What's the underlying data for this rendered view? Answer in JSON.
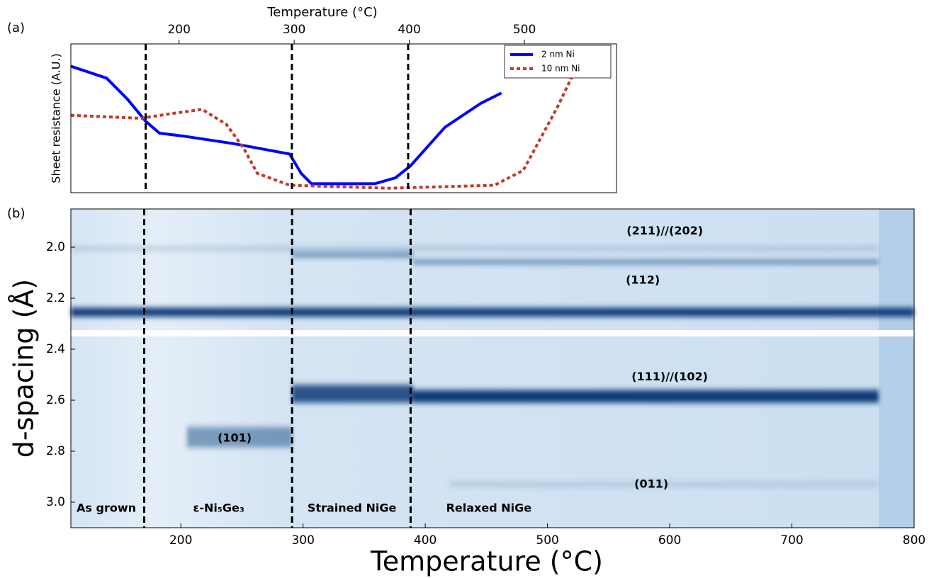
{
  "chart_data": [
    {
      "type": "line",
      "panel_label": "(a)",
      "xlabel": "Temperature (°C)",
      "ylabel": "Sheet resistance (A.U.)",
      "xlim": [
        106,
        580
      ],
      "xticks": [
        200,
        300,
        400,
        500
      ],
      "ylim": [
        0,
        1
      ],
      "legend": "upper right",
      "vlines": [
        171,
        298,
        399
      ],
      "series": [
        {
          "name": "2 nm Ni",
          "color": "#0000ff",
          "style": "solid",
          "x": [
            106,
            137,
            155,
            171,
            183,
            204,
            247,
            296,
            306,
            315,
            370,
            388,
            401,
            431,
            462,
            480
          ],
          "values": [
            0.85,
            0.77,
            0.63,
            0.48,
            0.4,
            0.38,
            0.33,
            0.26,
            0.13,
            0.06,
            0.06,
            0.1,
            0.18,
            0.44,
            0.6,
            0.67
          ]
        },
        {
          "name": "10 nm Ni",
          "color": "#c0392b",
          "style": "dotted",
          "x": [
            106,
            167,
            192,
            220,
            241,
            256,
            268,
            296,
            382,
            474,
            499,
            529,
            545
          ],
          "values": [
            0.52,
            0.5,
            0.53,
            0.56,
            0.46,
            0.3,
            0.13,
            0.05,
            0.03,
            0.05,
            0.15,
            0.58,
            0.84
          ]
        }
      ]
    },
    {
      "type": "heatmap",
      "panel_label": "(b)",
      "xlabel": "Temperature (°C)",
      "ylabel": "d-spacing (Å)",
      "xlim": [
        110,
        800
      ],
      "xticks": [
        200,
        300,
        400,
        500,
        600,
        700,
        800
      ],
      "ylim": [
        1.85,
        3.1
      ],
      "y_inverted": true,
      "yticks": [
        {
          "value": 2,
          "label": "2.0"
        },
        2.2,
        2.4,
        2.6,
        2.8,
        {
          "value": 3,
          "label": "3.0"
        }
      ],
      "gap": [
        2.325,
        2.35
      ],
      "vlines": [
        170,
        291,
        388
      ],
      "bands": [
        {
          "d": 2.005,
          "x": [
            110,
            771
          ],
          "width": 0.012,
          "intensity": 0.25
        },
        {
          "d": 2.03,
          "x": [
            291,
            390
          ],
          "width": 0.02,
          "intensity": 0.5
        },
        {
          "d": 2.058,
          "x": [
            390,
            771
          ],
          "width": 0.012,
          "intensity": 0.75
        },
        {
          "d": 2.255,
          "x": [
            110,
            800
          ],
          "width": 0.035,
          "intensity": 1
        },
        {
          "d": 2.575,
          "x": [
            291,
            390
          ],
          "width": 0.07,
          "intensity": 0.85
        },
        {
          "d": 2.585,
          "x": [
            390,
            771
          ],
          "width": 0.05,
          "intensity": 1
        },
        {
          "d": 2.745,
          "x": [
            205,
            291
          ],
          "width": 0.08,
          "intensity": 0.45
        },
        {
          "d": 2.93,
          "x": [
            420,
            770
          ],
          "width": 0.02,
          "intensity": 0.15
        }
      ],
      "annotations": [
        {
          "text": "(211)//(202)",
          "x": 596,
          "y": 1.937
        },
        {
          "text": "(112)",
          "x": 578,
          "y": 2.13
        },
        {
          "text": "(111)//(102)",
          "x": 600,
          "y": 2.51
        },
        {
          "text": "(101)",
          "x": 244,
          "y": 2.75
        },
        {
          "text": "(011)",
          "x": 585,
          "y": 2.93
        },
        {
          "text": "As grown",
          "x": 139,
          "y": 3.025
        },
        {
          "text": "ε-Ni₅Ge₃",
          "x": 231,
          "y": 3.025
        },
        {
          "text": "Strained NiGe",
          "x": 340,
          "y": 3.025
        },
        {
          "text": "Relaxed NiGe",
          "x": 452,
          "y": 3.025
        }
      ]
    }
  ]
}
